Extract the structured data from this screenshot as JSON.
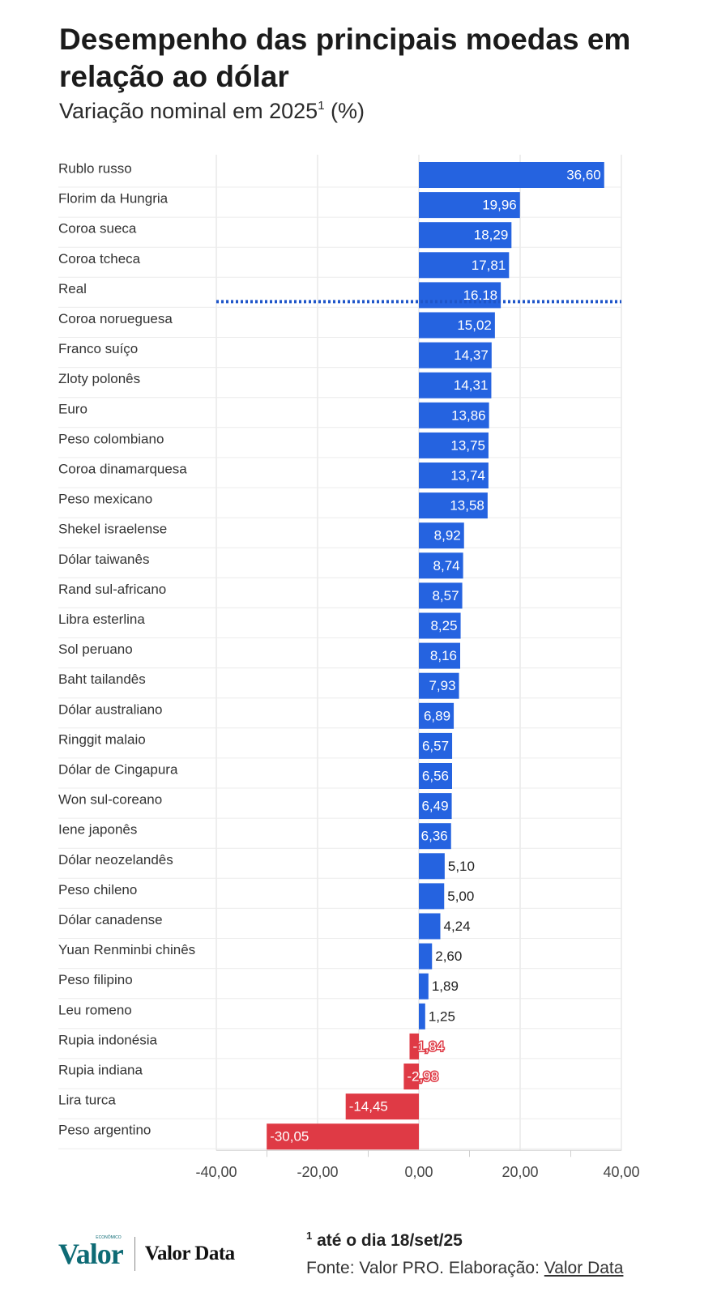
{
  "header": {
    "title": "Desempenho das principais moedas em relação ao dólar",
    "subtitle": "Variação nominal em 2025",
    "subtitle_sup": "1",
    "subtitle_unit": " (%)"
  },
  "chart_data": {
    "type": "bar",
    "orientation": "horizontal",
    "categories": [
      "Rublo russo",
      "Florim da Hungria",
      "Coroa sueca",
      "Coroa tcheca",
      "Real",
      "Coroa norueguesa",
      "Franco suíço",
      "Zloty polonês",
      "Euro",
      "Peso colombiano",
      "Coroa dinamarquesa",
      "Peso mexicano",
      "Shekel israelense",
      "Dólar taiwanês",
      "Rand sul-africano",
      "Libra esterlina",
      "Sol peruano",
      "Baht tailandês",
      "Dólar australiano",
      "Ringgit malaio",
      "Dólar de Cingapura",
      "Won sul-coreano",
      "Iene japonês",
      "Dólar neozelandês",
      "Peso chileno",
      "Dólar canadense",
      "Yuan Renminbi chinês",
      "Peso filipino",
      "Leu romeno",
      "Rupia indonésia",
      "Rupia indiana",
      "Lira turca",
      "Peso argentino"
    ],
    "values": [
      36.6,
      19.96,
      18.29,
      17.81,
      16.18,
      15.02,
      14.37,
      14.31,
      13.86,
      13.75,
      13.74,
      13.58,
      8.92,
      8.74,
      8.57,
      8.25,
      8.16,
      7.93,
      6.89,
      6.57,
      6.56,
      6.49,
      6.36,
      5.1,
      5.0,
      4.24,
      2.6,
      1.89,
      1.25,
      -1.84,
      -2.98,
      -14.45,
      -30.05
    ],
    "value_labels": [
      "36,60",
      "19,96",
      "18,29",
      "17,81",
      "16,18",
      "15,02",
      "14,37",
      "14,31",
      "13,86",
      "13,75",
      "13,74",
      "13,58",
      "8,92",
      "8,74",
      "8,57",
      "8,25",
      "8,16",
      "7,93",
      "6,89",
      "6,57",
      "6,56",
      "6,49",
      "6,36",
      "5,10",
      "5,00",
      "4,24",
      "2,60",
      "1,89",
      "1,25",
      "-1,84",
      "-2,98",
      "-14,45",
      "-30,05"
    ],
    "highlight_category": "Real",
    "xlim": [
      -40,
      40
    ],
    "x_ticks": [
      -40,
      -20,
      0,
      20,
      40
    ],
    "x_tick_labels": [
      "-40,00",
      "-20,00",
      "0,00",
      "20,00",
      "40,00"
    ],
    "grid": true,
    "colors": {
      "positive": "#2563e0",
      "negative": "#df3a45",
      "highlight_line": "#1f56c9",
      "grid": "#e3e3e3",
      "label_inside": "#ffffff",
      "label_outside": "#222222"
    }
  },
  "footer": {
    "note_sup": "1",
    "note": " até o dia 18/set/25",
    "source_prefix": "Fonte: Valor PRO. Elaboração: ",
    "source_link": "Valor Data",
    "logo_valor": "Valor",
    "logo_valor_small": "ECONÔMICO",
    "logo_valordata": "Valor Data"
  }
}
